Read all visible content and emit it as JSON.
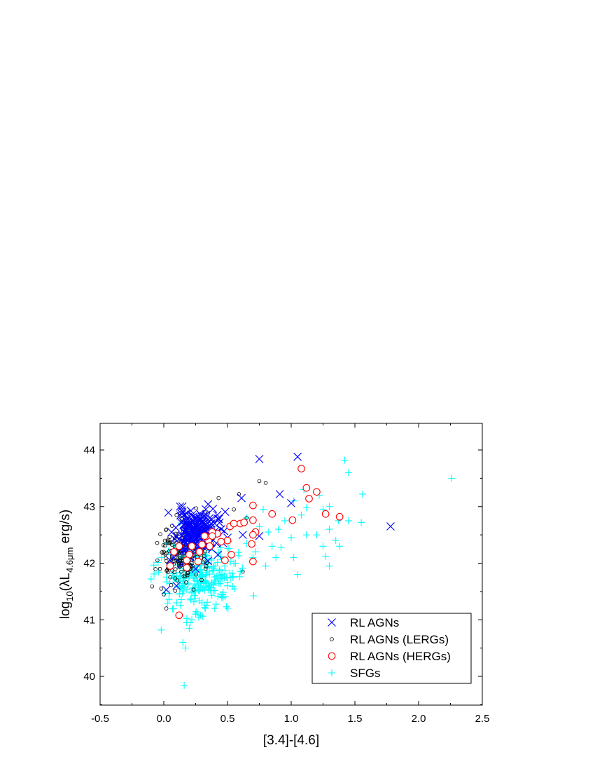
{
  "chart_data": {
    "type": "scatter",
    "xlabel": "[3.4]-[4.6]",
    "ylabel": {
      "base": "log",
      "base_sub": "10",
      "open": "(λL",
      "sub": "4.6μm",
      "close": " erg/s)"
    },
    "xlim": [
      -0.5,
      2.5
    ],
    "ylim": [
      39.5,
      44.5
    ],
    "x_ticks": [
      "-0.5",
      "0.0",
      "0.5",
      "1.0",
      "1.5",
      "2.0",
      "2.5"
    ],
    "y_ticks": [
      "40",
      "41",
      "42",
      "43",
      "44"
    ],
    "grid": false,
    "legend_placement": "bottom-right",
    "series": [
      {
        "name": "RL AGNs",
        "marker": "x",
        "color": "#0000ff",
        "points": [
          [
            0.75,
            43.84
          ],
          [
            1.05,
            43.88
          ],
          [
            0.91,
            43.22
          ],
          [
            0.61,
            43.15
          ],
          [
            1.0,
            43.06
          ],
          [
            1.78,
            42.65
          ],
          [
            0.62,
            42.5
          ],
          [
            0.75,
            42.48
          ],
          [
            0.02,
            41.53
          ],
          [
            0.25,
            41.9
          ],
          [
            0.1,
            41.6
          ],
          [
            0.18,
            42.88
          ],
          [
            0.33,
            42.95
          ],
          [
            0.2,
            42.7
          ],
          [
            0.22,
            42.55
          ],
          [
            0.25,
            42.4
          ],
          [
            0.3,
            42.6
          ],
          [
            0.15,
            42.3
          ],
          [
            0.28,
            42.8
          ],
          [
            0.35,
            42.5
          ],
          [
            0.4,
            42.7
          ],
          [
            0.18,
            42.2
          ],
          [
            0.05,
            42.05
          ],
          [
            0.08,
            42.1
          ],
          [
            0.12,
            42.25
          ],
          [
            0.45,
            42.6
          ],
          [
            0.5,
            42.45
          ],
          [
            0.27,
            42.65
          ],
          [
            0.23,
            42.75
          ],
          [
            0.32,
            42.35
          ],
          [
            0.2,
            42.45
          ],
          [
            0.17,
            42.58
          ],
          [
            0.26,
            42.5
          ],
          [
            0.3,
            42.72
          ],
          [
            0.24,
            42.62
          ],
          [
            0.36,
            42.62
          ],
          [
            0.42,
            42.55
          ]
        ],
        "cluster": {
          "count": 160,
          "center": [
            0.25,
            42.55
          ],
          "spread": [
            0.08,
            0.2
          ],
          "seed": 11
        }
      },
      {
        "name": "RL AGNs (LERGs)",
        "marker": "circle-small",
        "color": "#000000",
        "points": [
          [
            0.75,
            43.45
          ],
          [
            0.8,
            43.42
          ],
          [
            0.59,
            43.22
          ],
          [
            0.43,
            43.15
          ],
          [
            0.32,
            42.9
          ],
          [
            0.55,
            42.95
          ],
          [
            0.65,
            42.8
          ],
          [
            0.0,
            41.45
          ],
          [
            0.02,
            41.2
          ],
          [
            -0.02,
            41.55
          ],
          [
            0.05,
            41.75
          ],
          [
            -0.05,
            42.05
          ],
          [
            -0.03,
            41.9
          ],
          [
            0.1,
            42.85
          ],
          [
            0.15,
            42.6
          ],
          [
            0.25,
            42.7
          ],
          [
            0.62,
            41.85
          ],
          [
            0.12,
            41.95
          ],
          [
            0.07,
            42.2
          ],
          [
            0.2,
            42.1
          ],
          [
            0.0,
            42.2
          ],
          [
            0.04,
            42.35
          ],
          [
            0.3,
            42.55
          ],
          [
            0.38,
            42.35
          ]
        ],
        "cluster": {
          "count": 170,
          "center": [
            0.14,
            42.15
          ],
          "spread": [
            0.09,
            0.25
          ],
          "seed": 23
        }
      },
      {
        "name": "RL AGNs (HERGs)",
        "marker": "circle-open",
        "color": "#ff0000",
        "points": [
          [
            1.08,
            43.67
          ],
          [
            1.2,
            43.26
          ],
          [
            1.12,
            43.33
          ],
          [
            1.14,
            43.14
          ],
          [
            0.7,
            43.02
          ],
          [
            0.85,
            42.87
          ],
          [
            1.27,
            42.87
          ],
          [
            1.38,
            42.82
          ],
          [
            1.01,
            42.76
          ],
          [
            0.7,
            42.76
          ],
          [
            0.6,
            42.7
          ],
          [
            0.52,
            42.65
          ],
          [
            0.55,
            42.7
          ],
          [
            0.63,
            42.72
          ],
          [
            0.72,
            42.55
          ],
          [
            0.7,
            42.5
          ],
          [
            0.69,
            42.34
          ],
          [
            0.5,
            42.4
          ],
          [
            0.53,
            42.15
          ],
          [
            0.48,
            42.05
          ],
          [
            0.7,
            42.03
          ],
          [
            0.45,
            42.38
          ],
          [
            0.42,
            42.52
          ],
          [
            0.38,
            42.55
          ],
          [
            0.35,
            42.4
          ],
          [
            0.33,
            42.47
          ],
          [
            0.3,
            42.33
          ],
          [
            0.28,
            42.2
          ],
          [
            0.27,
            42.03
          ],
          [
            0.22,
            42.3
          ],
          [
            0.2,
            42.15
          ],
          [
            0.18,
            42.05
          ],
          [
            0.18,
            41.92
          ],
          [
            0.12,
            42.3
          ],
          [
            0.08,
            42.2
          ],
          [
            0.05,
            41.95
          ],
          [
            0.12,
            41.08
          ],
          [
            0.32,
            42.48
          ],
          [
            0.36,
            42.3
          ],
          [
            0.38,
            42.48
          ]
        ]
      },
      {
        "name": "SFGs",
        "marker": "plus",
        "color": "#00ffff",
        "points": [
          [
            1.42,
            43.82
          ],
          [
            1.45,
            43.6
          ],
          [
            2.26,
            43.5
          ],
          [
            1.56,
            43.22
          ],
          [
            1.1,
            43.3
          ],
          [
            1.22,
            43.2
          ],
          [
            1.3,
            43.0
          ],
          [
            1.25,
            42.95
          ],
          [
            1.37,
            42.75
          ],
          [
            1.55,
            42.72
          ],
          [
            1.45,
            42.75
          ],
          [
            1.3,
            42.6
          ],
          [
            1.2,
            42.5
          ],
          [
            1.12,
            42.5
          ],
          [
            1.25,
            42.3
          ],
          [
            1.35,
            42.4
          ],
          [
            1.38,
            42.3
          ],
          [
            1.27,
            42.12
          ],
          [
            1.3,
            41.95
          ],
          [
            1.05,
            41.8
          ],
          [
            1.02,
            42.1
          ],
          [
            0.88,
            42.1
          ],
          [
            0.8,
            41.95
          ],
          [
            0.92,
            42.28
          ],
          [
            1.0,
            42.45
          ],
          [
            0.95,
            42.75
          ],
          [
            1.08,
            42.85
          ],
          [
            1.12,
            42.98
          ],
          [
            1.02,
            43.1
          ],
          [
            0.82,
            42.55
          ],
          [
            0.85,
            42.3
          ],
          [
            0.72,
            42.2
          ],
          [
            0.6,
            41.85
          ],
          [
            0.5,
            41.6
          ],
          [
            0.45,
            41.45
          ],
          [
            0.4,
            41.2
          ],
          [
            0.3,
            41.3
          ],
          [
            0.25,
            41.1
          ],
          [
            0.22,
            41.0
          ],
          [
            0.2,
            40.85
          ],
          [
            0.18,
            40.95
          ],
          [
            0.15,
            40.6
          ],
          [
            0.17,
            40.5
          ],
          [
            0.16,
            39.84
          ],
          [
            -0.02,
            40.82
          ],
          [
            -0.1,
            41.72
          ],
          [
            0.1,
            41.3
          ],
          [
            0.35,
            41.6
          ],
          [
            0.55,
            42.0
          ],
          [
            0.65,
            42.35
          ],
          [
            0.75,
            42.65
          ],
          [
            0.78,
            42.95
          ],
          [
            0.65,
            42.8
          ],
          [
            0.9,
            42.6
          ],
          [
            0.7,
            42.1
          ]
        ],
        "cluster": {
          "count": 260,
          "center": [
            0.3,
            41.78
          ],
          "spread": [
            0.14,
            0.3
          ],
          "seed": 37
        }
      }
    ]
  }
}
